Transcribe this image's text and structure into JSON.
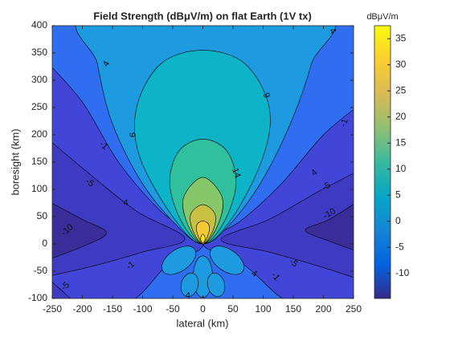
{
  "chart_data": {
    "type": "contourf",
    "title": "Field Strength (dBμV/m) on flat Earth (1V tx)",
    "x_label": "lateral (km)",
    "y_label": "boresight (km)",
    "xlim": [
      -250,
      250
    ],
    "xticks": [
      -250,
      -200,
      -150,
      -100,
      -50,
      0,
      50,
      100,
      150,
      200,
      250
    ],
    "ylim": [
      -100,
      400
    ],
    "yticks": [
      -100,
      -50,
      0,
      50,
      100,
      150,
      200,
      250,
      300,
      350,
      400
    ],
    "levels": [
      -10,
      -5,
      -1,
      4,
      9,
      14,
      19,
      24,
      29,
      34
    ],
    "fills": [
      "#3b2d99",
      "#3e3bc2",
      "#4146d9",
      "#2f6ef1",
      "#1e9ae0",
      "#0db4c7",
      "#31c09e",
      "#86c76a",
      "#c9bf42",
      "#f3c934",
      "#f8e31c"
    ],
    "colorbar": {
      "title": "dBμV/m",
      "lim": [
        -14.8,
        37.5
      ],
      "ticks": [
        -10,
        -5,
        0,
        5,
        10,
        15,
        20,
        25,
        30,
        35
      ],
      "colormap": [
        "#352a87",
        "#0363e1",
        "#1485d4",
        "#06a7c6",
        "#38b99e",
        "#92bf73",
        "#d9ba56",
        "#fcce2e",
        "#f9fb0e"
      ]
    }
  }
}
